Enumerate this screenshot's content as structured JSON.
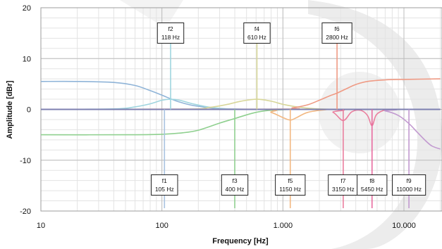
{
  "chart_data": {
    "type": "line",
    "xscale": "log",
    "xlim": [
      10,
      20000
    ],
    "ylim": [
      -20,
      20
    ],
    "xlabel": "Frequency [Hz]",
    "ylabel": "Amplitude  [dBr]",
    "x_ticks": [
      {
        "value": 10,
        "label": "10"
      },
      {
        "value": 100,
        "label": "100"
      },
      {
        "value": 1000,
        "label": "1.000"
      },
      {
        "value": 10000,
        "label": "10.000"
      }
    ],
    "y_ticks": [
      {
        "value": 20,
        "label": "20"
      },
      {
        "value": 10,
        "label": "10"
      },
      {
        "value": 0,
        "label": "0"
      },
      {
        "value": -10,
        "label": "-10"
      },
      {
        "value": -20,
        "label": "-20"
      }
    ],
    "grid": true,
    "series": [
      {
        "color": "#8fb4d8",
        "x": [
          10,
          20,
          40,
          60,
          80,
          100,
          130,
          170,
          230,
          300,
          400,
          600,
          1000,
          2000,
          5000,
          10000,
          20000
        ],
        "y": [
          5.5,
          5.5,
          5.3,
          4.7,
          3.7,
          2.8,
          1.7,
          0.9,
          0.4,
          0.15,
          0.05,
          0,
          0,
          0,
          0,
          0,
          0
        ]
      },
      {
        "color": "#9fd5df",
        "x": [
          10,
          40,
          60,
          80,
          100,
          118,
          140,
          180,
          250,
          350,
          600,
          1000,
          20000
        ],
        "y": [
          0,
          0.1,
          0.5,
          1.1,
          1.8,
          2.0,
          1.8,
          1.1,
          0.4,
          0.1,
          0,
          0,
          0
        ]
      },
      {
        "color": "#8fd08f",
        "x": [
          10,
          50,
          100,
          150,
          200,
          300,
          400,
          550,
          700,
          1000,
          1500,
          3000,
          20000
        ],
        "y": [
          -5,
          -5,
          -4.9,
          -4.6,
          -4.1,
          -2.7,
          -1.8,
          -0.8,
          -0.3,
          -0.05,
          0,
          0,
          0
        ]
      },
      {
        "color": "#d8d79a",
        "x": [
          10,
          150,
          250,
          350,
          450,
          610,
          800,
          1000,
          1300,
          1800,
          3000,
          20000
        ],
        "y": [
          0,
          0.05,
          0.4,
          1.0,
          1.6,
          2.0,
          1.6,
          1.0,
          0.5,
          0.15,
          0,
          0
        ]
      },
      {
        "color": "#f2b882",
        "x": [
          10,
          600,
          800,
          1000,
          1150,
          1300,
          1600,
          2200,
          3000,
          20000
        ],
        "y": [
          0,
          0,
          -0.6,
          -1.6,
          -2.1,
          -1.6,
          -0.6,
          -0.1,
          0,
          0
        ]
      },
      {
        "color": "#ef9a84",
        "x": [
          10,
          900,
          1200,
          1600,
          2000,
          2400,
          2800,
          3300,
          4000,
          5000,
          7000,
          10000,
          20000
        ],
        "y": [
          0,
          0.05,
          0.3,
          0.9,
          1.8,
          2.6,
          3.2,
          4.0,
          4.9,
          5.5,
          5.8,
          5.9,
          6.0
        ]
      },
      {
        "color": "#ea7f9e",
        "x": [
          10,
          2000,
          2600,
          3150,
          3700,
          4400,
          5000,
          5450,
          5900,
          6800,
          8000,
          20000
        ],
        "y": [
          0,
          0,
          -0.6,
          -2.2,
          -0.5,
          -0.2,
          -1.2,
          -3.2,
          -1.1,
          -0.2,
          0,
          0
        ]
      },
      {
        "color": "#c29ad0",
        "x": [
          10,
          5000,
          7000,
          9000,
          11000,
          13000,
          15000,
          17000,
          20000
        ],
        "y": [
          0,
          0,
          -0.3,
          -1.2,
          -2.8,
          -4.6,
          -6.1,
          -7.2,
          -7.8
        ]
      },
      {
        "color": "#7d7fb0",
        "x": [
          10,
          20000
        ],
        "y": [
          0,
          0
        ]
      }
    ],
    "annotations": [
      {
        "name": "f1",
        "value": "105 Hz",
        "freq": 105,
        "color": "#a8c3e0",
        "position": "bottom"
      },
      {
        "name": "f2",
        "value": "118 Hz",
        "freq": 118,
        "color": "#9fd5df",
        "position": "top"
      },
      {
        "name": "f3",
        "value": "400 Hz",
        "freq": 400,
        "color": "#8fd08f",
        "position": "bottom"
      },
      {
        "name": "f4",
        "value": "610 Hz",
        "freq": 610,
        "color": "#d8d79a",
        "position": "top"
      },
      {
        "name": "f5",
        "value": "1150 Hz",
        "freq": 1150,
        "color": "#f2b882",
        "position": "bottom"
      },
      {
        "name": "f6",
        "value": "2800 Hz",
        "freq": 2800,
        "color": "#ef9a84",
        "position": "top"
      },
      {
        "name": "f7",
        "value": "3150 Hz",
        "freq": 3150,
        "color": "#ea7f9e",
        "position": "bottom"
      },
      {
        "name": "f8",
        "value": "5450 Hz",
        "freq": 5450,
        "color": "#e86a9f",
        "position": "bottom"
      },
      {
        "name": "f9",
        "value": "11000 Hz",
        "freq": 11000,
        "color": "#c29ad0",
        "position": "bottom"
      }
    ]
  }
}
